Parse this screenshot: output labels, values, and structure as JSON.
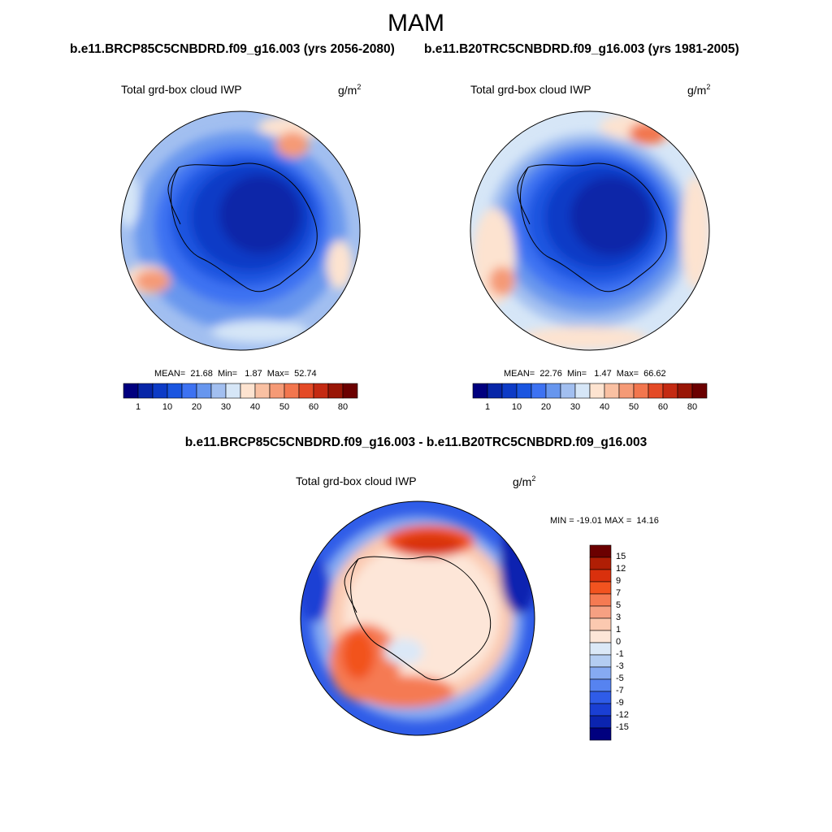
{
  "figure": {
    "season": "MAM",
    "case1_title": "b.e11.BRCP85C5CNBDRD.f09_g16.003 (yrs 2056-2080)",
    "case2_title": "b.e11.B20TRC5CNBDRD.f09_g16.003 (yrs 1981-2005)",
    "diff_title": "b.e11.BRCP85C5CNBDRD.f09_g16.003 - b.e11.B20TRC5CNBDRD.f09_g16.003"
  },
  "chart_data": [
    {
      "type": "heatmap",
      "title": "b.e11.BRCP85C5CNBDRD.f09_g16.003 (yrs 2056-2080)",
      "variable": "Total grd-box cloud IWP",
      "units": "g/m2",
      "projection": "polar-stereographic-south",
      "stats": {
        "mean": 21.68,
        "min": 1.87,
        "max": 52.74
      },
      "stats_text": "MEAN=  21.68  Min=   1.87  Max=  52.74",
      "contour_levels": [
        1,
        5,
        10,
        15,
        20,
        25,
        30,
        35,
        40,
        45,
        50,
        55,
        60,
        70,
        80
      ],
      "tick_labels": [
        "1",
        "10",
        "20",
        "30",
        "40",
        "50",
        "60",
        "80"
      ],
      "colors": [
        "#01007f",
        "#0726a8",
        "#0d3bc6",
        "#1a55e0",
        "#3d72f2",
        "#6796ee",
        "#a2bff0",
        "#d6e6f7",
        "#fde3d0",
        "#f9c0a2",
        "#f59a76",
        "#f2764e",
        "#e44a26",
        "#c42a12",
        "#991606",
        "#6b0000"
      ]
    },
    {
      "type": "heatmap",
      "title": "b.e11.B20TRC5CNBDRD.f09_g16.003 (yrs 1981-2005)",
      "variable": "Total grd-box cloud IWP",
      "units": "g/m2",
      "projection": "polar-stereographic-south",
      "stats": {
        "mean": 22.76,
        "min": 1.47,
        "max": 66.62
      },
      "stats_text": "MEAN=  22.76  Min=   1.47  Max=  66.62",
      "contour_levels": [
        1,
        5,
        10,
        15,
        20,
        25,
        30,
        35,
        40,
        45,
        50,
        55,
        60,
        70,
        80
      ],
      "tick_labels": [
        "1",
        "10",
        "20",
        "30",
        "40",
        "50",
        "60",
        "80"
      ],
      "colors": [
        "#01007f",
        "#0726a8",
        "#0d3bc6",
        "#1a55e0",
        "#3d72f2",
        "#6796ee",
        "#a2bff0",
        "#d6e6f7",
        "#fde3d0",
        "#f9c0a2",
        "#f59a76",
        "#f2764e",
        "#e44a26",
        "#c42a12",
        "#991606",
        "#6b0000"
      ]
    },
    {
      "type": "heatmap",
      "title": "b.e11.BRCP85C5CNBDRD.f09_g16.003 - b.e11.B20TRC5CNBDRD.f09_g16.003",
      "variable": "Total grd-box cloud IWP",
      "units": "g/m2",
      "projection": "polar-stereographic-south",
      "stats": {
        "min": -19.01,
        "max": 14.16
      },
      "stats_text": "MIN = -19.01 MAX =  14.16",
      "contour_levels": [
        -15,
        -12,
        -9,
        -7,
        -5,
        -3,
        -1,
        0,
        1,
        3,
        5,
        7,
        9,
        12,
        15
      ],
      "tick_labels": [
        "15",
        "12",
        "9",
        "7",
        "5",
        "3",
        "1",
        "0",
        "-1",
        "-3",
        "-5",
        "-7",
        "-9",
        "-12",
        "-15"
      ],
      "colors": [
        "#6b0000",
        "#b01e05",
        "#d9300d",
        "#f2531f",
        "#f57a52",
        "#f6a082",
        "#fbc9b0",
        "#fde6d8",
        "#dbe8f7",
        "#b4cdf2",
        "#86aaf2",
        "#5683f0",
        "#2f5ce8",
        "#1a3fd4",
        "#0b24b0",
        "#00007f"
      ]
    }
  ]
}
